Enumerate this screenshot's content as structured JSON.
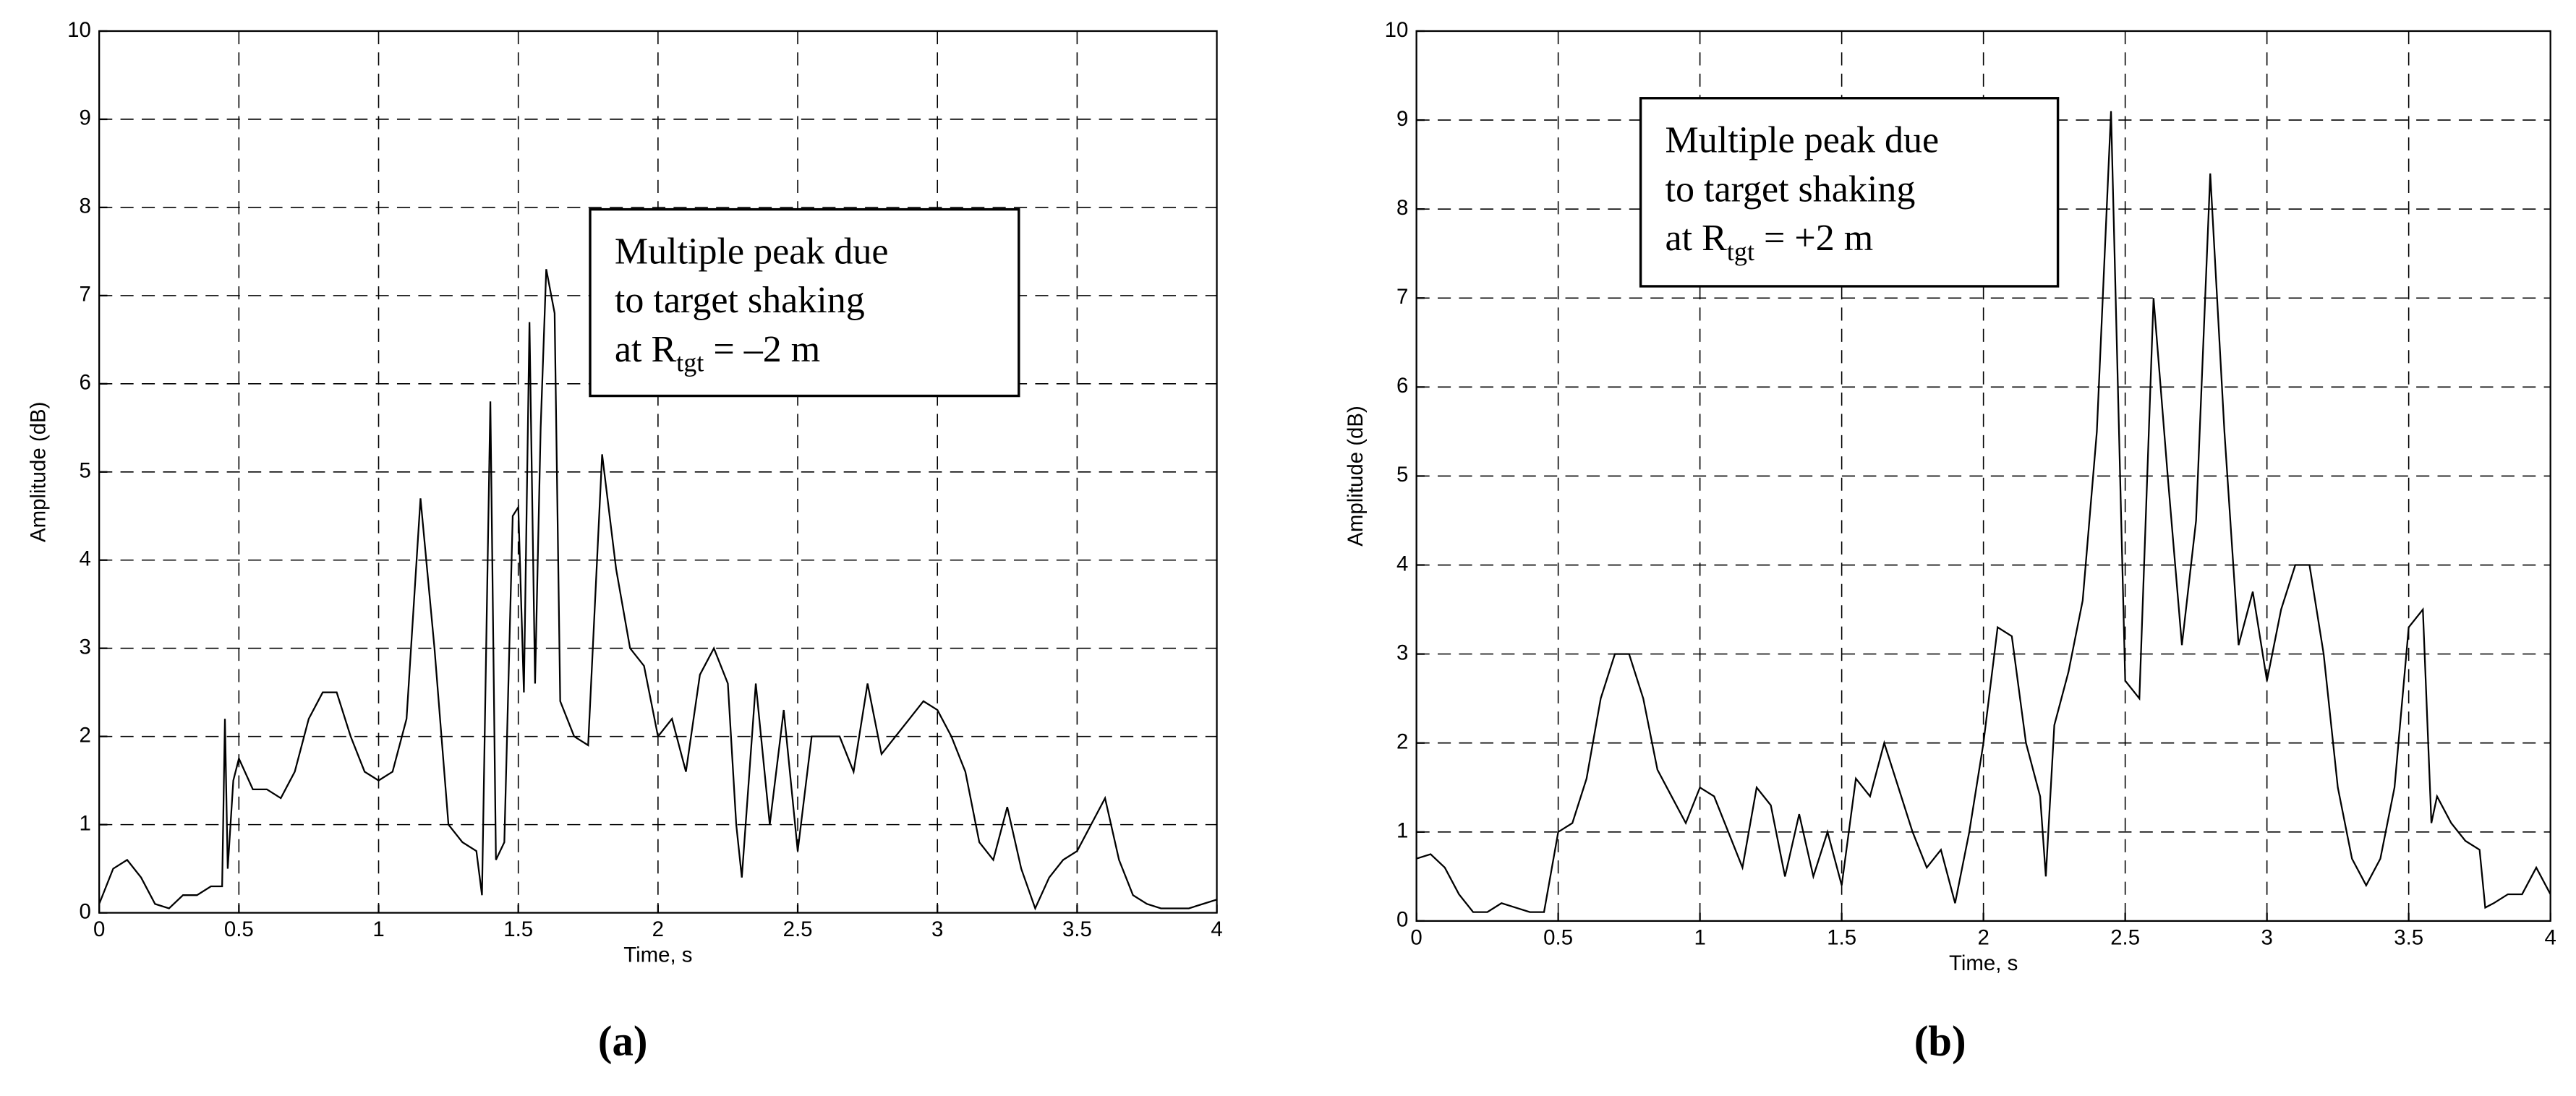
{
  "chart_data": [
    {
      "type": "line",
      "color": "#000000",
      "xlabel": "Time, s",
      "ylabel": "Amplitude (dB)",
      "panel_label": "(a)",
      "annotation": {
        "lines": [
          "Multiple peak due",
          "to target shaking"
        ],
        "prefix": "at R",
        "subscript": "tgt",
        "suffix": " = –2 m"
      },
      "xlim": [
        0,
        4
      ],
      "ylim": [
        0,
        10
      ],
      "xticks": [
        0,
        0.5,
        1,
        1.5,
        2,
        2.5,
        3,
        3.5,
        4
      ],
      "yticks": [
        0,
        1,
        2,
        3,
        4,
        5,
        6,
        7,
        8,
        9,
        10
      ],
      "grid": true,
      "x": [
        0,
        0.05,
        0.1,
        0.15,
        0.2,
        0.25,
        0.3,
        0.35,
        0.4,
        0.44,
        0.45,
        0.46,
        0.48,
        0.5,
        0.55,
        0.6,
        0.65,
        0.7,
        0.75,
        0.8,
        0.85,
        0.9,
        0.95,
        1.0,
        1.05,
        1.1,
        1.15,
        1.2,
        1.25,
        1.3,
        1.35,
        1.37,
        1.4,
        1.42,
        1.45,
        1.48,
        1.5,
        1.52,
        1.54,
        1.56,
        1.58,
        1.6,
        1.63,
        1.65,
        1.7,
        1.75,
        1.8,
        1.85,
        1.9,
        1.95,
        2.0,
        2.05,
        2.1,
        2.15,
        2.2,
        2.25,
        2.28,
        2.3,
        2.35,
        2.4,
        2.45,
        2.5,
        2.55,
        2.6,
        2.65,
        2.7,
        2.75,
        2.8,
        2.85,
        2.9,
        2.95,
        3.0,
        3.05,
        3.1,
        3.15,
        3.2,
        3.25,
        3.3,
        3.35,
        3.4,
        3.45,
        3.5,
        3.55,
        3.6,
        3.65,
        3.7,
        3.75,
        3.8,
        3.85,
        3.9,
        3.95,
        4.0
      ],
      "values": [
        0.1,
        0.5,
        0.6,
        0.4,
        0.1,
        0.05,
        0.2,
        0.2,
        0.3,
        0.3,
        2.2,
        0.5,
        1.5,
        1.75,
        1.4,
        1.4,
        1.3,
        1.6,
        2.2,
        2.5,
        2.5,
        2.0,
        1.6,
        1.5,
        1.6,
        2.2,
        4.7,
        3.0,
        1.0,
        0.8,
        0.7,
        0.2,
        5.8,
        0.6,
        0.8,
        4.5,
        4.6,
        2.5,
        6.7,
        2.6,
        5.5,
        7.3,
        6.8,
        2.4,
        2.0,
        1.9,
        5.2,
        3.9,
        3.0,
        2.8,
        2.0,
        2.2,
        1.6,
        2.7,
        3.0,
        2.6,
        1.0,
        0.4,
        2.6,
        1.0,
        2.3,
        0.7,
        2.0,
        2.0,
        2.0,
        1.6,
        2.6,
        1.8,
        2.0,
        2.2,
        2.4,
        2.3,
        2.0,
        1.6,
        0.8,
        0.6,
        1.2,
        0.5,
        0.05,
        0.4,
        0.6,
        0.7,
        1.0,
        1.3,
        0.6,
        0.2,
        0.1,
        0.05,
        0.05,
        0.05,
        0.1,
        0.15
      ]
    },
    {
      "type": "line",
      "color": "#000000",
      "xlabel": "Time, s",
      "ylabel": "Amplitude (dB)",
      "panel_label": "(b)",
      "annotation": {
        "lines": [
          "Multiple peak due",
          "to target shaking"
        ],
        "prefix": "at R",
        "subscript": "tgt",
        "suffix": " = +2 m"
      },
      "xlim": [
        0,
        4
      ],
      "ylim": [
        0,
        10
      ],
      "xticks": [
        0,
        0.5,
        1,
        1.5,
        2,
        2.5,
        3,
        3.5,
        4
      ],
      "yticks": [
        0,
        1,
        2,
        3,
        4,
        5,
        6,
        7,
        8,
        9,
        10
      ],
      "grid": true,
      "x": [
        0,
        0.05,
        0.1,
        0.15,
        0.2,
        0.25,
        0.3,
        0.35,
        0.4,
        0.45,
        0.5,
        0.55,
        0.6,
        0.65,
        0.7,
        0.75,
        0.8,
        0.85,
        0.9,
        0.95,
        1.0,
        1.05,
        1.1,
        1.15,
        1.2,
        1.25,
        1.3,
        1.35,
        1.4,
        1.45,
        1.5,
        1.55,
        1.6,
        1.65,
        1.7,
        1.75,
        1.8,
        1.85,
        1.9,
        1.95,
        2.0,
        2.05,
        2.1,
        2.15,
        2.2,
        2.22,
        2.25,
        2.3,
        2.35,
        2.4,
        2.45,
        2.5,
        2.55,
        2.6,
        2.65,
        2.7,
        2.75,
        2.8,
        2.85,
        2.9,
        2.95,
        3.0,
        3.05,
        3.1,
        3.15,
        3.2,
        3.25,
        3.3,
        3.35,
        3.4,
        3.45,
        3.5,
        3.55,
        3.58,
        3.6,
        3.65,
        3.7,
        3.75,
        3.77,
        3.8,
        3.85,
        3.9,
        3.95,
        4.0
      ],
      "values": [
        0.7,
        0.75,
        0.6,
        0.3,
        0.1,
        0.1,
        0.2,
        0.15,
        0.1,
        0.1,
        1.0,
        1.1,
        1.6,
        2.5,
        3.0,
        3.0,
        2.5,
        1.7,
        1.4,
        1.1,
        1.5,
        1.4,
        1.0,
        0.6,
        1.5,
        1.3,
        0.5,
        1.2,
        0.5,
        1.0,
        0.4,
        1.6,
        1.4,
        2.0,
        1.5,
        1.0,
        0.6,
        0.8,
        0.2,
        1.0,
        2.0,
        3.3,
        3.2,
        2.0,
        1.4,
        0.5,
        2.2,
        2.8,
        3.6,
        5.5,
        9.1,
        2.7,
        2.5,
        7.0,
        5.0,
        3.1,
        4.5,
        8.4,
        5.5,
        3.1,
        3.7,
        2.7,
        3.5,
        4.0,
        4.0,
        3.0,
        1.5,
        0.7,
        0.4,
        0.7,
        1.5,
        3.3,
        3.5,
        1.1,
        1.4,
        1.1,
        0.9,
        0.8,
        0.15,
        0.2,
        0.3,
        0.3,
        0.6,
        0.3
      ]
    }
  ]
}
